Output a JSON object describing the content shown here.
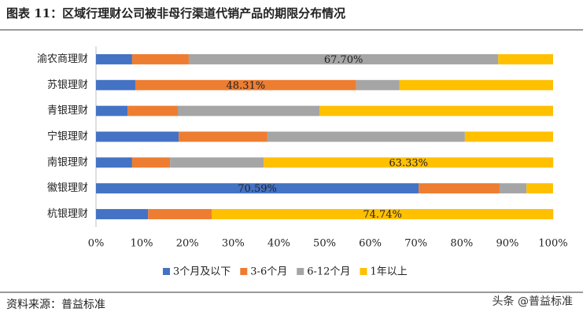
{
  "chart_data": {
    "type": "stacked-barh",
    "title": "图表 11：区域行理财公司被非母行渠道代销产品的期限分布情况",
    "categories": [
      "渝农商理财",
      "苏银理财",
      "青银理财",
      "宁银理财",
      "南银理财",
      "徽银理财",
      "杭银理财"
    ],
    "series": [
      {
        "name": "3个月及以下",
        "color": "#4472c4",
        "values": [
          7.9,
          8.6,
          6.9,
          18.1,
          7.9,
          70.59,
          11.4
        ],
        "value_labels": [
          null,
          null,
          null,
          null,
          null,
          "70.59%",
          null
        ]
      },
      {
        "name": "3-6个月",
        "color": "#ed7d31",
        "values": [
          12.4,
          48.31,
          11.0,
          19.4,
          8.3,
          17.7,
          13.9
        ],
        "value_labels": [
          null,
          "48.31%",
          null,
          null,
          null,
          null,
          null
        ]
      },
      {
        "name": "6-12个月",
        "color": "#a5a5a5",
        "values": [
          67.7,
          9.5,
          31.0,
          43.2,
          20.5,
          5.9,
          0
        ],
        "value_labels": [
          "67.70%",
          null,
          null,
          null,
          null,
          null,
          null
        ]
      },
      {
        "name": "1年以上",
        "color": "#ffc000",
        "values": [
          12.0,
          33.59,
          51.1,
          19.3,
          63.33,
          5.8,
          74.74
        ],
        "value_labels": [
          null,
          null,
          null,
          null,
          "63.33%",
          null,
          "74.74%"
        ]
      }
    ],
    "xlim": [
      0,
      100
    ],
    "xticks": [
      {
        "value": 0,
        "label": "0%"
      },
      {
        "value": 10,
        "label": "10%"
      },
      {
        "value": 20,
        "label": "20%"
      },
      {
        "value": 30,
        "label": "30%"
      },
      {
        "value": 40,
        "label": "40%"
      },
      {
        "value": 50,
        "label": "50%"
      },
      {
        "value": 60,
        "label": "60%"
      },
      {
        "value": 70,
        "label": "70%"
      },
      {
        "value": 80,
        "label": "80%"
      },
      {
        "value": 90,
        "label": "90%"
      },
      {
        "value": 100,
        "label": "100%"
      }
    ],
    "legend": "bottom"
  },
  "footer": {
    "source": "资料来源：普益标准",
    "watermark": "头条 @普益标准"
  }
}
